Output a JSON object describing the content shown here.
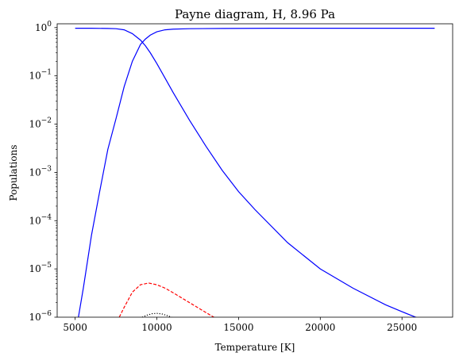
{
  "chart_data": {
    "type": "line",
    "title": "Payne diagram, H, 8.96 Pa",
    "xlabel": "Temperature [K]",
    "ylabel": "Populations",
    "xlim": [
      3900,
      28100
    ],
    "ylim": [
      1e-06,
      1.2
    ],
    "yscale": "log",
    "grid": false,
    "legend": "none",
    "x_ticks": [
      5000,
      10000,
      15000,
      20000,
      25000
    ],
    "x_tick_labels": [
      "5000",
      "10000",
      "15000",
      "20000",
      "25000"
    ],
    "y_tick_exponents": [
      -6,
      -5,
      -4,
      -3,
      -2,
      -1,
      0
    ],
    "y_tick_base": "10",
    "series": [
      {
        "color": "#0000ff",
        "dash": "solid",
        "x": [
          5000,
          6000,
          7000,
          7500,
          8000,
          8500,
          9000,
          9300,
          9600,
          10000,
          10500,
          11000,
          12000,
          13000,
          14000,
          15000,
          16000,
          18000,
          20000,
          22000,
          24000,
          25000,
          26000,
          27000
        ],
        "y": [
          0.97,
          0.97,
          0.96,
          0.95,
          0.9,
          0.75,
          0.55,
          0.42,
          0.3,
          0.18,
          0.09,
          0.045,
          0.012,
          0.0035,
          0.0011,
          0.0004,
          0.00017,
          3.5e-05,
          1e-05,
          4e-06,
          1.8e-06,
          1.3e-06,
          9.5e-07,
          7e-07
        ]
      },
      {
        "color": "#0000ff",
        "dash": "solid",
        "x": [
          5000,
          5200,
          5500,
          6000,
          6500,
          7000,
          7500,
          8000,
          8500,
          9000,
          9300,
          9600,
          10000,
          10500,
          11000,
          12000,
          14000,
          17000,
          20000,
          24000,
          27000
        ],
        "y": [
          2e-07,
          1e-06,
          4e-06,
          5e-05,
          0.0004,
          0.003,
          0.013,
          0.06,
          0.2,
          0.45,
          0.58,
          0.7,
          0.82,
          0.9,
          0.93,
          0.95,
          0.96,
          0.97,
          0.97,
          0.97,
          0.97
        ]
      },
      {
        "color": "#ff0000",
        "dash": "dashed",
        "x": [
          7700,
          8000,
          8500,
          9000,
          9500,
          10000,
          10500,
          11000,
          12000,
          13000,
          13600
        ],
        "y": [
          1e-06,
          1.6e-06,
          3.3e-06,
          4.7e-06,
          5.1e-06,
          4.7e-06,
          4e-06,
          3.2e-06,
          2e-06,
          1.25e-06,
          9.5e-07
        ]
      },
      {
        "color": "#000000",
        "dash": "dotted",
        "x": [
          9100,
          9400,
          9700,
          10000,
          10300,
          10600,
          10900
        ],
        "y": [
          1e-06,
          1.1e-06,
          1.18e-06,
          1.2e-06,
          1.17e-06,
          1.09e-06,
          1e-06
        ]
      }
    ]
  }
}
